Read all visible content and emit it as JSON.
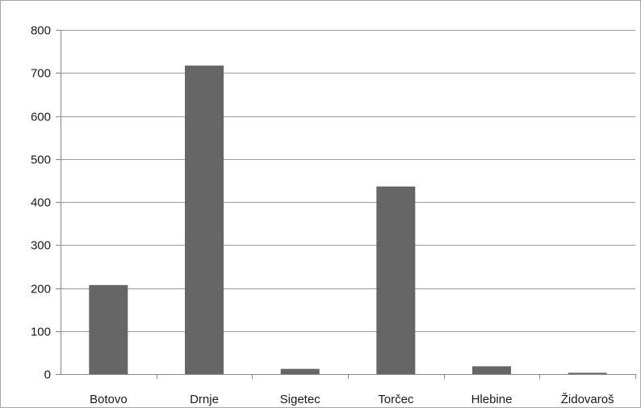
{
  "chart_data": {
    "type": "bar",
    "title": "",
    "xlabel": "",
    "ylabel": "",
    "categories": [
      "Botovo",
      "Drnje",
      "Sigetec",
      "Torčec",
      "Hlebine",
      "Židovaroš"
    ],
    "values": [
      207,
      717,
      12,
      436,
      18,
      3
    ],
    "ylim": [
      0,
      800
    ],
    "yticks": [
      0,
      100,
      200,
      300,
      400,
      500,
      600,
      700,
      800
    ],
    "grid": true,
    "legend": "none",
    "bar_color": "#666666",
    "grid_color": "#9a9a9a",
    "axis_color": "#888888"
  }
}
